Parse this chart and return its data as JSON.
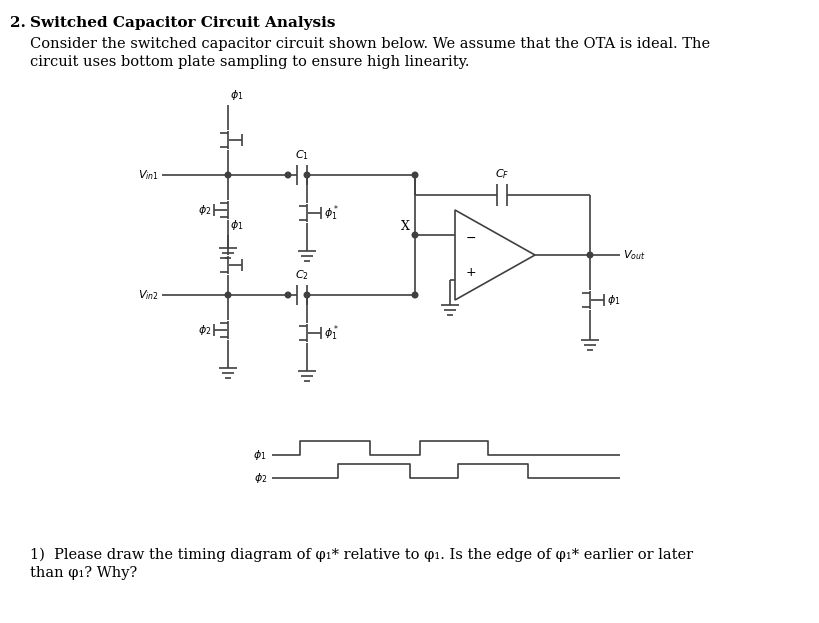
{
  "title_num": "2.",
  "title_text": "  Switched Capacitor Circuit Analysis",
  "body_line1": "Consider the switched capacitor circuit shown below. We assume that the OTA is ideal. The",
  "body_line2": "circuit uses bottom plate sampling to ensure high linearity.",
  "q_line1": "1)  Please draw the timing diagram of φ₁* relative to φ₁. Is the edge of φ₁* earlier or later",
  "q_line2": "than φ₁? Why?",
  "bg_color": "#ffffff",
  "text_color": "#000000",
  "line_color": "#404040",
  "lw": 1.2,
  "title_fs": 11,
  "body_fs": 10.5,
  "label_fs": 8.5,
  "small_fs": 8
}
